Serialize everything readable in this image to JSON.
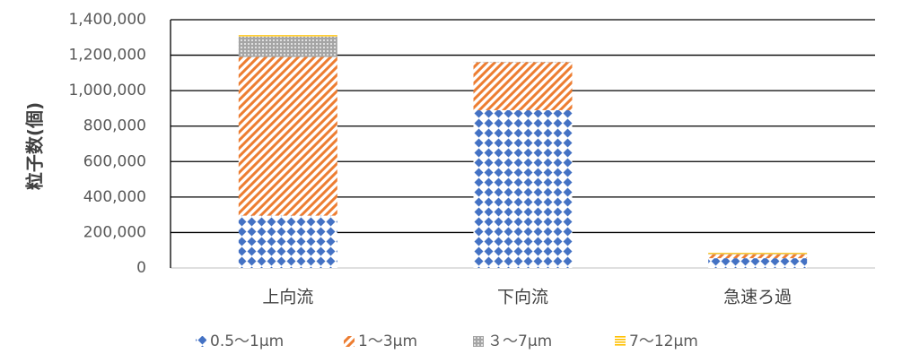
{
  "chart_data": {
    "type": "bar",
    "stacked": true,
    "categories": [
      "上向流",
      "下向流",
      "急速ろ過"
    ],
    "series": [
      {
        "name": "0.5～1μm",
        "values": [
          295000,
          890000,
          55000
        ],
        "color": "#4472C4",
        "pattern": "diamonds"
      },
      {
        "name": "1～3μm",
        "values": [
          895000,
          270000,
          22000
        ],
        "color": "#ED7D31",
        "pattern": "diagonal-stripes"
      },
      {
        "name": "３～7μm",
        "values": [
          115000,
          3000,
          2000
        ],
        "color": "#A5A5A5",
        "pattern": "dots"
      },
      {
        "name": "7～12μm",
        "values": [
          8000,
          1000,
          6000
        ],
        "color": "#FFC000",
        "pattern": "horizontal-lines"
      }
    ],
    "ylabel": "粒子数(個)",
    "xlabel": "",
    "ylim": [
      0,
      1400000
    ],
    "yticks": [
      "0",
      "200,000",
      "400,000",
      "600,000",
      "800,000",
      "1,000,000",
      "1,200,000",
      "1,400,000"
    ],
    "grid": true,
    "legend": "bottom"
  }
}
